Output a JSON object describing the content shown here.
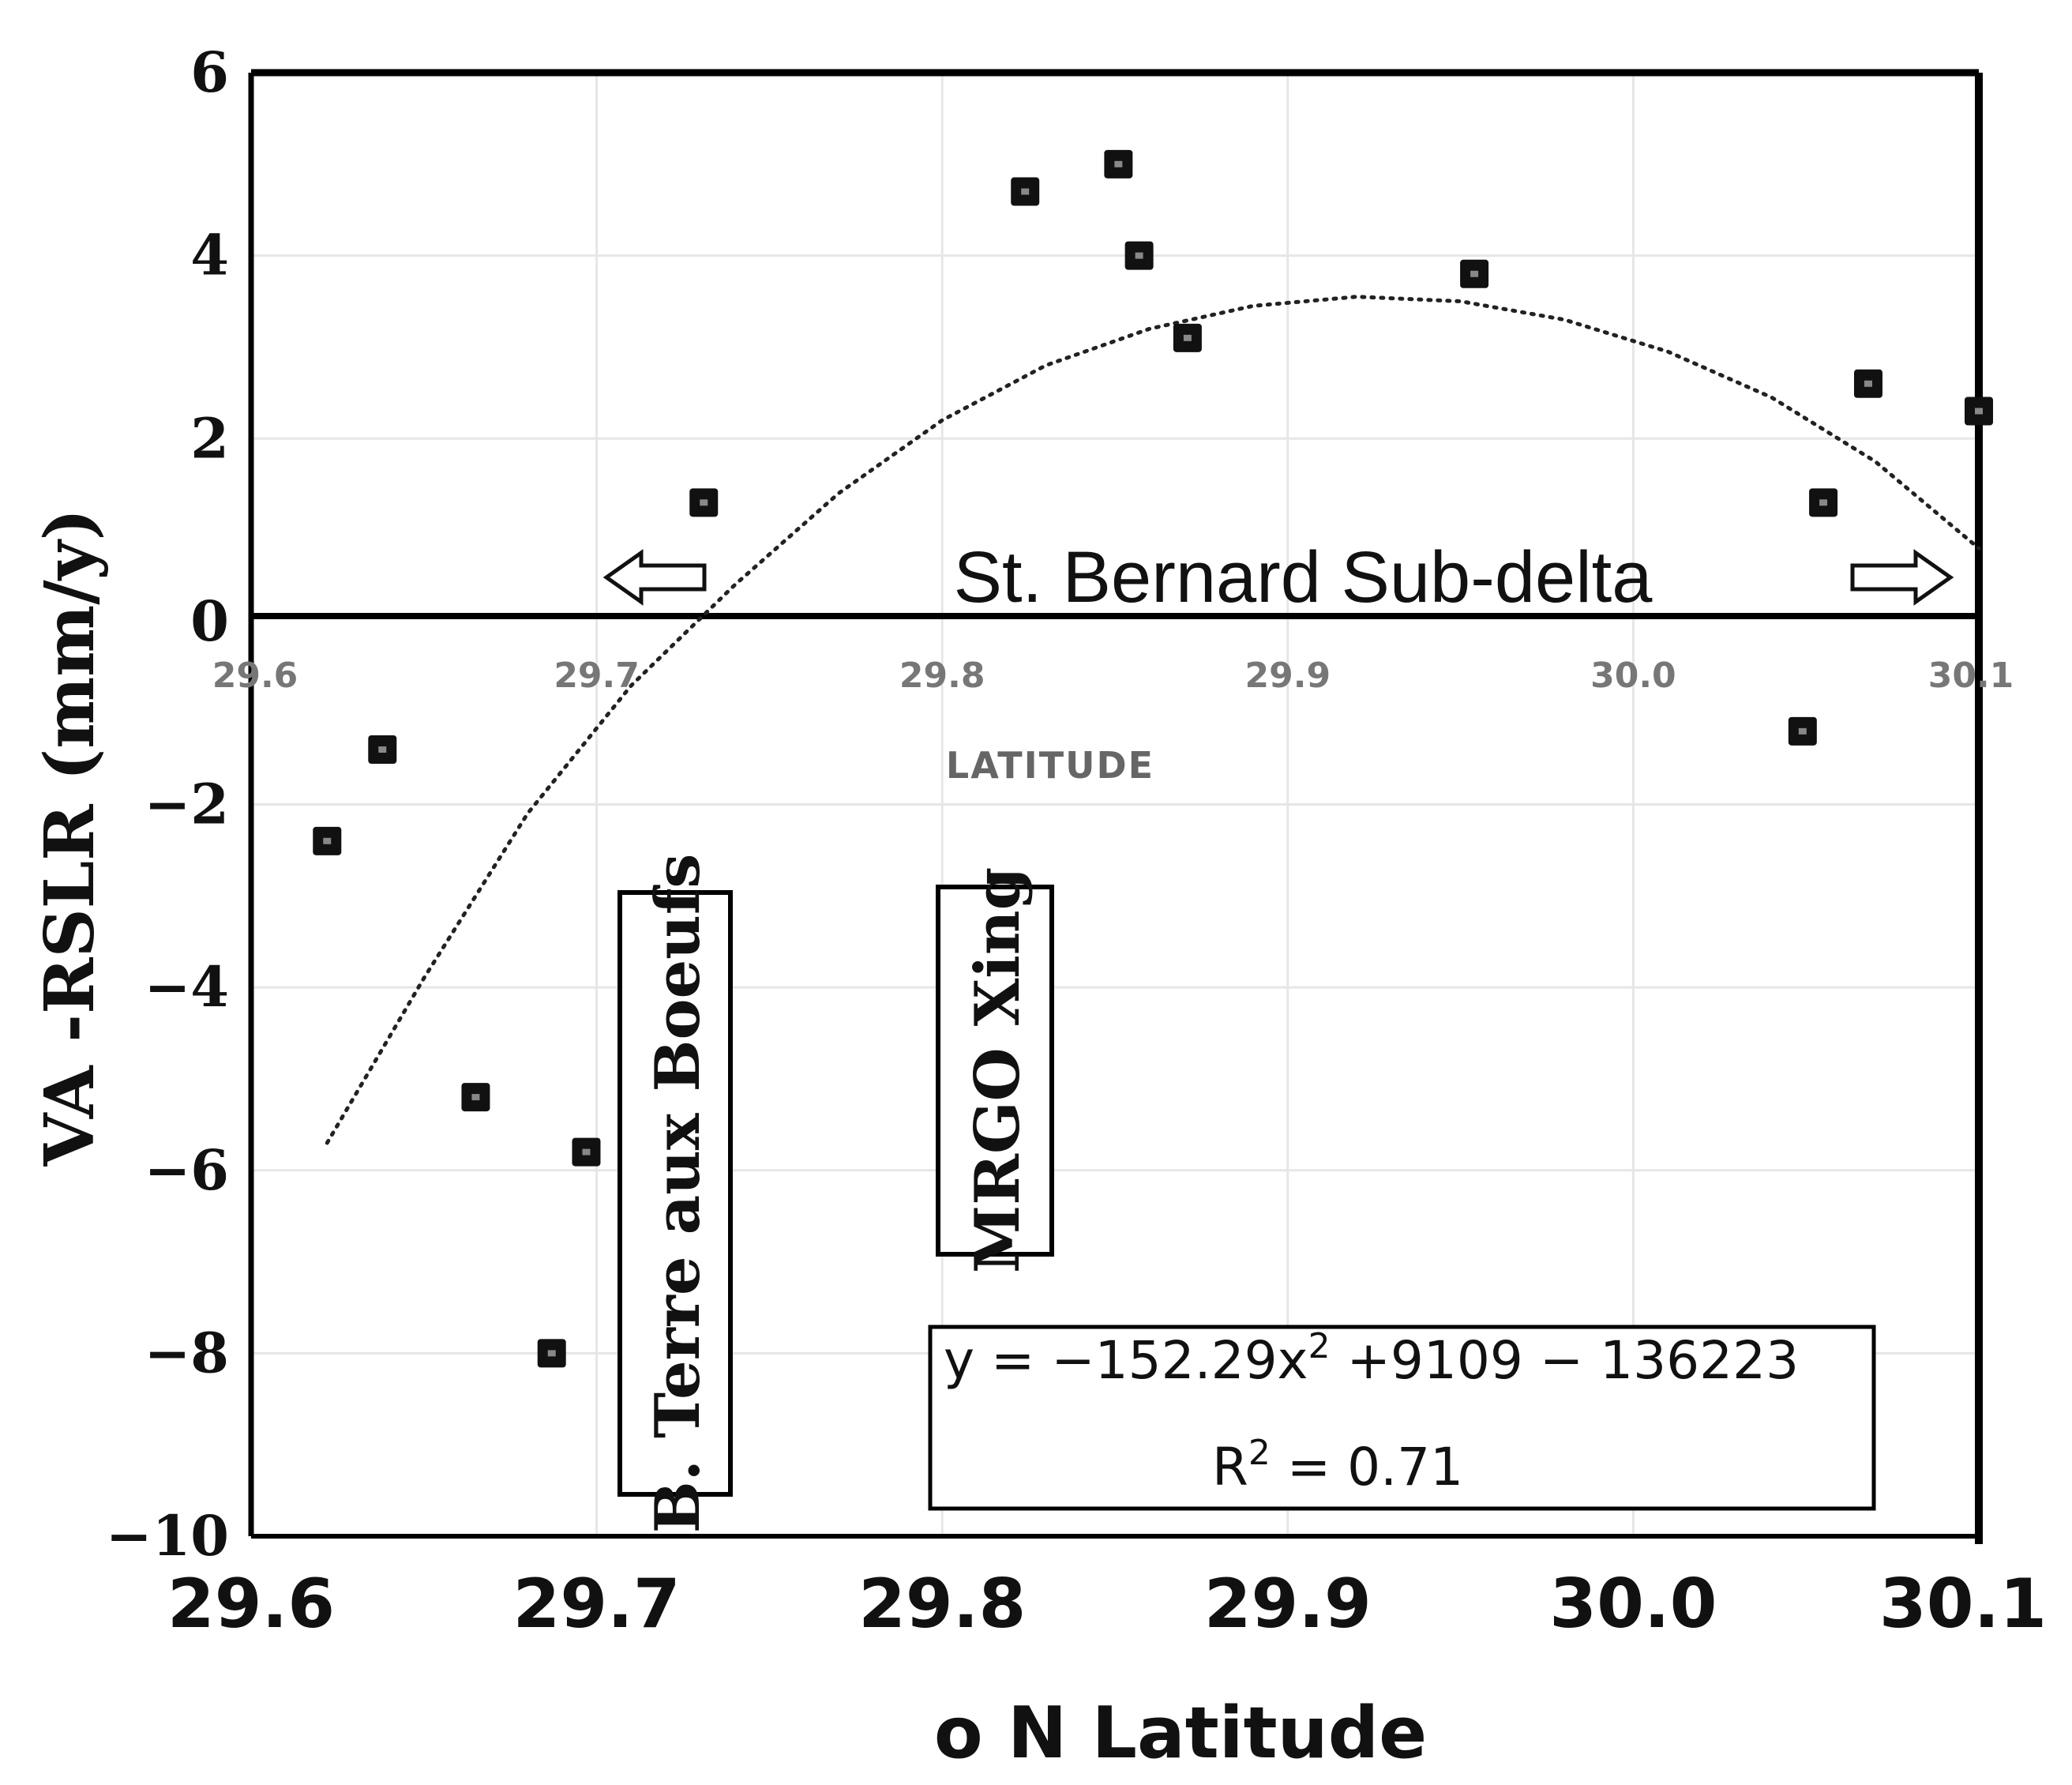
{
  "chart_data": {
    "type": "scatter",
    "xlabel": "o N Latitude",
    "ylabel": "VA -RSLR (mm/y)",
    "xlim": [
      29.6,
      30.1
    ],
    "ylim": [
      -10,
      6
    ],
    "x_ticks": [
      "29.6",
      "29.7",
      "29.8",
      "29.9",
      "30.0",
      "30.1"
    ],
    "y_ticks": [
      "6",
      "4",
      "2",
      "0",
      "−2",
      "−4",
      "−6",
      "−8",
      "−10"
    ],
    "inner_x_ticks": [
      "29.6",
      "29.7",
      "29.8",
      "29.9",
      "30.0",
      "30.1"
    ],
    "inner_xlabel": "LATITUDE",
    "grid": true,
    "series": [
      {
        "points": [
          {
            "x": 29.622,
            "y": -2.4
          },
          {
            "x": 29.638,
            "y": -1.4
          },
          {
            "x": 29.665,
            "y": -5.2
          },
          {
            "x": 29.687,
            "y": -8.0
          },
          {
            "x": 29.697,
            "y": -5.8
          },
          {
            "x": 29.731,
            "y": 1.3
          },
          {
            "x": 29.824,
            "y": 4.7
          },
          {
            "x": 29.851,
            "y": 5.0
          },
          {
            "x": 29.857,
            "y": 4.0
          },
          {
            "x": 29.871,
            "y": 3.1
          },
          {
            "x": 29.954,
            "y": 3.8
          },
          {
            "x": 30.049,
            "y": -1.2
          },
          {
            "x": 30.055,
            "y": 1.3
          },
          {
            "x": 30.068,
            "y": 2.6
          },
          {
            "x": 30.1,
            "y": 2.3
          }
        ]
      }
    ],
    "trendline": {
      "style": "dotted",
      "type": "quadratic",
      "points": [
        {
          "x": 29.622,
          "y": -5.7
        },
        {
          "x": 29.65,
          "y": -3.9
        },
        {
          "x": 29.68,
          "y": -2.1
        },
        {
          "x": 29.71,
          "y": -0.7
        },
        {
          "x": 29.74,
          "y": 0.4
        },
        {
          "x": 29.77,
          "y": 1.4
        },
        {
          "x": 29.8,
          "y": 2.2
        },
        {
          "x": 29.83,
          "y": 2.8
        },
        {
          "x": 29.86,
          "y": 3.2
        },
        {
          "x": 29.89,
          "y": 3.45
        },
        {
          "x": 29.92,
          "y": 3.55
        },
        {
          "x": 29.95,
          "y": 3.5
        },
        {
          "x": 29.98,
          "y": 3.3
        },
        {
          "x": 30.01,
          "y": 2.95
        },
        {
          "x": 30.04,
          "y": 2.45
        },
        {
          "x": 30.07,
          "y": 1.75
        },
        {
          "x": 30.1,
          "y": 0.8
        }
      ]
    },
    "annotations": {
      "region_label": "St. Bernard Sub-delta",
      "box_left": "B. Terre aux Boeufs",
      "box_middle": "MRGO Xing",
      "equation": "y = −152.29x",
      "equation_sup": "2",
      "equation_rest": " +9109 − 136223",
      "r2_label": "R",
      "r2_sup": "2",
      "r2_rest": "  = 0.71"
    }
  }
}
